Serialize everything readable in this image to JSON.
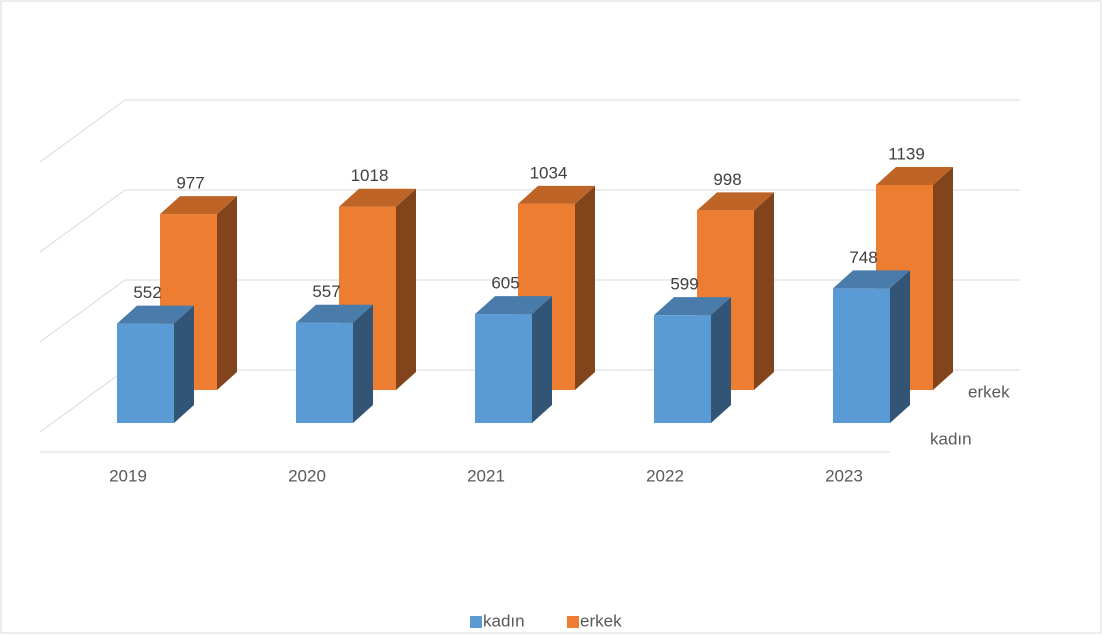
{
  "chart_data": {
    "type": "bar3d",
    "categories": [
      "2019",
      "2020",
      "2021",
      "2022",
      "2023"
    ],
    "series": [
      {
        "name": "kadın",
        "color": "#5b9bd5",
        "values": [
          552,
          557,
          605,
          599,
          748
        ]
      },
      {
        "name": "erkek",
        "color": "#ed7d31",
        "values": [
          977,
          1018,
          1034,
          998,
          1139
        ]
      }
    ],
    "ylim": [
      0,
      1500
    ],
    "yticks": [
      0,
      500,
      1000,
      1500
    ],
    "grid": true,
    "legend": "bottom"
  }
}
